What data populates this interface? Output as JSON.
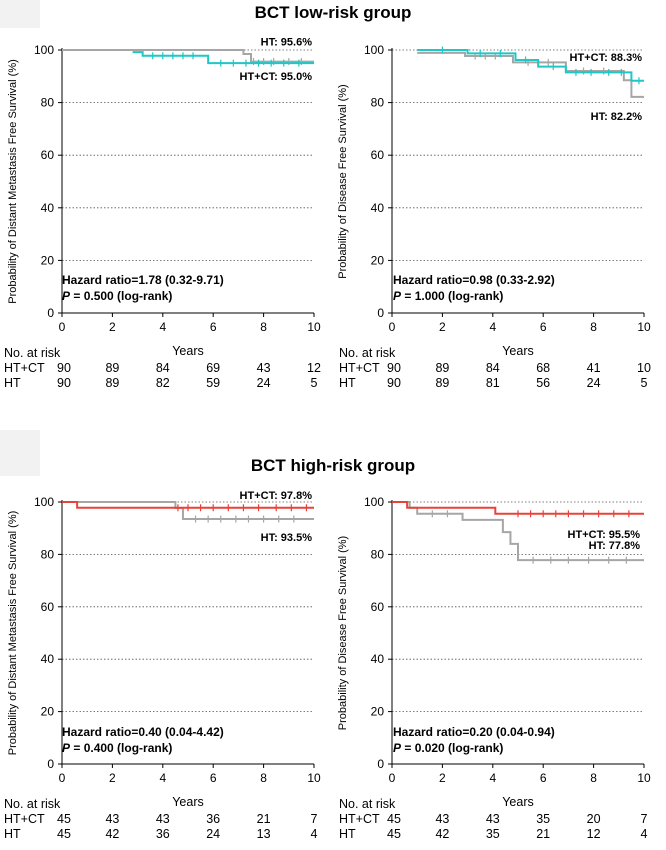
{
  "titles": {
    "low": "BCT low-risk group",
    "high": "BCT high-risk group"
  },
  "common": {
    "xlabel": "Years",
    "risk_header": "No. at risk",
    "xticks": [
      "0",
      "2",
      "4",
      "6",
      "8",
      "10"
    ],
    "yticks": [
      "0",
      "20",
      "40",
      "60",
      "80",
      "100"
    ],
    "colors": {
      "ht": "#a6a6a6",
      "ht_ct_low": "#1fc7c7",
      "ht_ct_high": "#e8433a"
    }
  },
  "chart_data": [
    {
      "type": "line",
      "panel": "low-risk distant metastasis free survival",
      "ylabel": "Probability of Distant Metastasis Free Survival (%)",
      "xlabel": "Years",
      "xlim": [
        0,
        10
      ],
      "ylim": [
        0,
        100
      ],
      "grid": "horizontal dotted",
      "series": [
        {
          "name": "HT",
          "label": "HT: 95.6%",
          "color": "#a6a6a6",
          "x": [
            0,
            6.9,
            7.2,
            7.5,
            10
          ],
          "y": [
            100,
            100,
            98.5,
            95.6,
            95.6
          ],
          "censor_x": [
            7.6,
            8.0,
            8.4,
            9.0,
            9.5
          ]
        },
        {
          "name": "HT+CT",
          "label": "HT+CT: 95.0%",
          "color": "#1fc7c7",
          "x": [
            2.8,
            3.2,
            5.8,
            10
          ],
          "y": [
            99.2,
            97.8,
            95.0,
            95.0
          ],
          "censor_x": [
            3.6,
            4.0,
            4.4,
            4.8,
            5.2,
            6.3,
            6.8,
            7.3,
            7.8,
            8.3,
            8.8,
            9.4
          ]
        }
      ],
      "hazard": "Hazard ratio=1.78 (0.32-9.71)",
      "p_label": "P",
      "p_value": " = 0.500 (log-rank)",
      "risk_table": {
        "times": [
          0,
          2,
          4,
          6,
          8,
          10
        ],
        "rows": [
          {
            "label": "HT+CT",
            "values": [
              "90",
              "89",
              "84",
              "69",
              "43",
              "12"
            ]
          },
          {
            "label": "HT",
            "values": [
              "90",
              "89",
              "82",
              "59",
              "24",
              "5"
            ]
          }
        ]
      }
    },
    {
      "type": "line",
      "panel": "low-risk disease free survival",
      "ylabel": "Probability of Disease Free Survival (%)",
      "xlabel": "Years",
      "xlim": [
        0,
        10
      ],
      "ylim": [
        0,
        100
      ],
      "grid": "horizontal dotted",
      "series": [
        {
          "name": "HT",
          "label": "HT: 82.2%",
          "color": "#a6a6a6",
          "x": [
            1.0,
            2.9,
            4.8,
            6.9,
            9.2,
            9.5,
            10
          ],
          "y": [
            98.9,
            97.7,
            95.3,
            92.0,
            88.5,
            82.2,
            82.2
          ],
          "censor_x": [
            3.3,
            3.7,
            4.1,
            5.4,
            6.2,
            7.6,
            8.4
          ]
        },
        {
          "name": "HT+CT",
          "label": "HT+CT: 88.3%",
          "color": "#1fc7c7",
          "x": [
            1.0,
            3.0,
            4.9,
            5.8,
            6.9,
            9.5,
            10
          ],
          "y": [
            100,
            98.7,
            96.2,
            93.7,
            91.5,
            88.3,
            88.3
          ],
          "censor_x": [
            2.0,
            3.5,
            4.3,
            5.3,
            6.4,
            7.3,
            7.9,
            8.6,
            9.1,
            9.8
          ]
        }
      ],
      "hazard": "Hazard ratio=0.98 (0.33-2.92)",
      "p_label": "P",
      "p_value": " = 1.000 (log-rank)",
      "risk_table": {
        "times": [
          0,
          2,
          4,
          6,
          8,
          10
        ],
        "rows": [
          {
            "label": "HT+CT",
            "values": [
              "90",
              "89",
              "84",
              "68",
              "41",
              "10"
            ]
          },
          {
            "label": "HT",
            "values": [
              "90",
              "89",
              "81",
              "56",
              "24",
              "5"
            ]
          }
        ]
      }
    },
    {
      "type": "line",
      "panel": "high-risk distant metastasis free survival",
      "ylabel": "Probability of Distant Metastasis Free Survival (%)",
      "xlabel": "Years",
      "xlim": [
        0,
        10
      ],
      "ylim": [
        0,
        100
      ],
      "grid": "horizontal dotted",
      "series": [
        {
          "name": "HT",
          "label": "HT: 93.5%",
          "color": "#a6a6a6",
          "x": [
            0,
            4.5,
            4.8,
            10
          ],
          "y": [
            100,
            97.7,
            93.5,
            93.5
          ],
          "censor_x": [
            5.3,
            5.8,
            6.3,
            6.9,
            7.4,
            8.0,
            8.6,
            9.2
          ]
        },
        {
          "name": "HT+CT",
          "label": "HT+CT: 97.8%",
          "color": "#e8433a",
          "x": [
            0,
            0.6,
            10
          ],
          "y": [
            100,
            97.8,
            97.8
          ],
          "censor_x": [
            4.6,
            5.0,
            5.5,
            6.0,
            6.6,
            7.2,
            7.8,
            8.5,
            9.1,
            9.7
          ]
        }
      ],
      "hazard": "Hazard ratio=0.40 (0.04-4.42)",
      "p_label": "P",
      "p_value": " = 0.400 (log-rank)",
      "risk_table": {
        "times": [
          0,
          2,
          4,
          6,
          8,
          10
        ],
        "rows": [
          {
            "label": "HT+CT",
            "values": [
              "45",
              "43",
              "43",
              "36",
              "21",
              "7"
            ]
          },
          {
            "label": "HT",
            "values": [
              "45",
              "42",
              "36",
              "24",
              "13",
              "4"
            ]
          }
        ]
      }
    },
    {
      "type": "line",
      "panel": "high-risk disease free survival",
      "ylabel": "Probability of Disease Free Survival (%)",
      "xlabel": "Years",
      "xlim": [
        0,
        10
      ],
      "ylim": [
        0,
        100
      ],
      "grid": "horizontal dotted",
      "series": [
        {
          "name": "HT",
          "label": "HT: 77.8%",
          "color": "#a6a6a6",
          "x": [
            0,
            0.7,
            1.0,
            2.8,
            4.4,
            4.7,
            5.0,
            10
          ],
          "y": [
            100,
            97.8,
            95.5,
            93.2,
            88.5,
            84.0,
            77.8,
            77.8
          ],
          "censor_x": [
            1.6,
            2.2,
            5.6,
            6.3,
            7.0,
            7.8,
            8.6,
            9.3
          ]
        },
        {
          "name": "HT+CT",
          "label": "HT+CT: 95.5%",
          "color": "#e8433a",
          "x": [
            0,
            0.6,
            4.1,
            10
          ],
          "y": [
            100,
            97.8,
            95.5,
            95.5
          ],
          "censor_x": [
            5.0,
            5.5,
            6.0,
            6.5,
            7.0,
            7.6,
            8.2,
            8.8,
            9.4
          ]
        }
      ],
      "hazard": "Hazard ratio=0.20 (0.04-0.94)",
      "p_label": "P",
      "p_value": " = 0.020 (log-rank)",
      "risk_table": {
        "times": [
          0,
          2,
          4,
          6,
          8,
          10
        ],
        "rows": [
          {
            "label": "HT+CT",
            "values": [
              "45",
              "43",
              "43",
              "35",
              "20",
              "7"
            ]
          },
          {
            "label": "HT",
            "values": [
              "45",
              "42",
              "35",
              "21",
              "12",
              "4"
            ]
          }
        ]
      }
    }
  ]
}
